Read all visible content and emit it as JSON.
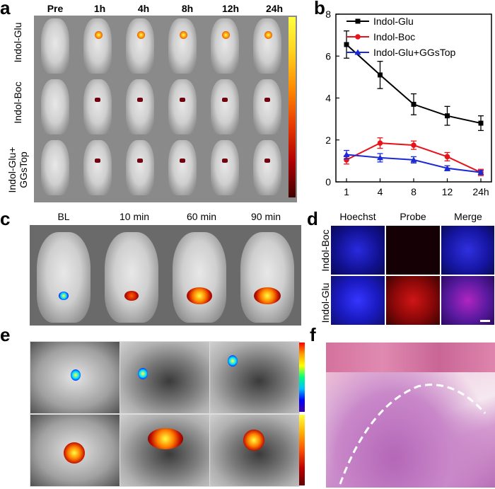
{
  "panel_labels": {
    "a": "a",
    "b": "b",
    "c": "c",
    "d": "d",
    "e": "e",
    "f": "f"
  },
  "panel_a": {
    "time_labels": [
      "Pre",
      "1h",
      "4h",
      "8h",
      "12h",
      "24h"
    ],
    "row_labels": [
      "Indol-Glu",
      "Indol-Boc"
    ],
    "row3_label_line1": "Indol-Glu+",
    "row3_label_line2": "GGsTop"
  },
  "panel_c": {
    "labels": [
      "BL",
      "10 min",
      "60 min",
      "90 min"
    ]
  },
  "panel_d": {
    "columns": [
      "Hoechst",
      "Probe",
      "Merge"
    ],
    "rows": [
      "Indol-Boc",
      "Indol-Glu"
    ]
  },
  "colors": {
    "glu": "#000000",
    "boc": "#e8141b",
    "ggs": "#1a2ad6"
  },
  "chart_data": {
    "type": "line",
    "categories": [
      "1",
      "4",
      "8",
      "12",
      "24h"
    ],
    "ylim": [
      0,
      8
    ],
    "yticks": [
      "0",
      "2",
      "4",
      "6",
      "8"
    ],
    "series": [
      {
        "name": "Indol-Glu",
        "values": [
          6.55,
          5.1,
          3.7,
          3.15,
          2.8
        ],
        "errors": [
          0.65,
          0.65,
          0.5,
          0.45,
          0.35
        ]
      },
      {
        "name": "Indol-Boc",
        "values": [
          1.05,
          1.85,
          1.75,
          1.2,
          0.45
        ],
        "errors": [
          0.2,
          0.25,
          0.2,
          0.2,
          0.15
        ]
      },
      {
        "name": "Indol-Glu+GGsTop",
        "values": [
          1.3,
          1.15,
          1.05,
          0.65,
          0.45
        ],
        "errors": [
          0.2,
          0.2,
          0.15,
          0.12,
          0.1
        ]
      }
    ]
  }
}
